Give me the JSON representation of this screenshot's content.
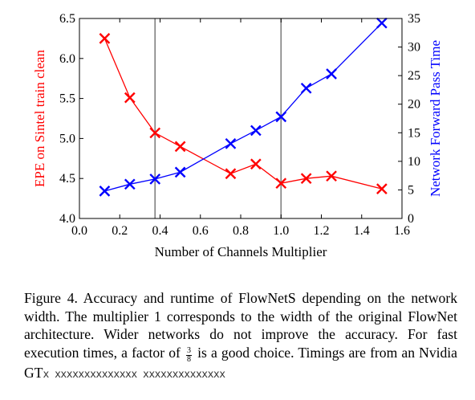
{
  "chart_data": {
    "type": "line",
    "xlabel": "Number of Channels Multiplier",
    "ylabel_left": "EPE on Sintel train clean",
    "ylabel_right": "Network Forward Pass Time",
    "xlim": [
      0.0,
      1.6
    ],
    "ylim_left": [
      4.0,
      6.5
    ],
    "ylim_right": [
      0,
      35
    ],
    "x_ticks": [
      "0.0",
      "0.2",
      "0.4",
      "0.6",
      "0.8",
      "1.0",
      "1.2",
      "1.4",
      "1.6"
    ],
    "y_left_ticks": [
      "4.0",
      "4.5",
      "5.0",
      "5.5",
      "6.0",
      "6.5"
    ],
    "y_right_ticks": [
      "0",
      "5",
      "10",
      "15",
      "20",
      "25",
      "30",
      "35"
    ],
    "vlines": [
      0.375,
      1.0
    ],
    "grid": false,
    "series": [
      {
        "axis": "left",
        "color": "#ff0000",
        "marker": "x",
        "x": [
          0.125,
          0.25,
          0.375,
          0.5,
          0.75,
          0.875,
          1.0,
          1.125,
          1.25,
          1.5
        ],
        "y": [
          6.25,
          5.51,
          5.07,
          4.9,
          4.56,
          4.68,
          4.44,
          4.5,
          4.53,
          4.37
        ]
      },
      {
        "axis": "right",
        "color": "#0000ff",
        "marker": "x",
        "x": [
          0.125,
          0.25,
          0.375,
          0.5,
          0.75,
          0.875,
          1.0,
          1.125,
          1.25,
          1.5
        ],
        "y": [
          4.8,
          6.0,
          6.9,
          8.1,
          13.1,
          15.4,
          17.8,
          22.8,
          25.3,
          34.2
        ]
      }
    ]
  },
  "caption": {
    "lead": "Figure 4. Accuracy and runtime of FlowNetS depending on the network width.  The multiplier 1 corresponds to the width of the original FlowNet architecture. Wider networks do not improve the accuracy. For fast execution times, a factor of",
    "frac_num": "3",
    "frac_den": "8",
    "tail": "is a good choice.",
    "last_line_start": "Timings are from an Nvidia GT",
    "last_line_garbled": "x xxxxxxxxxxxxxx xxxxxxxxxxxxxx"
  }
}
